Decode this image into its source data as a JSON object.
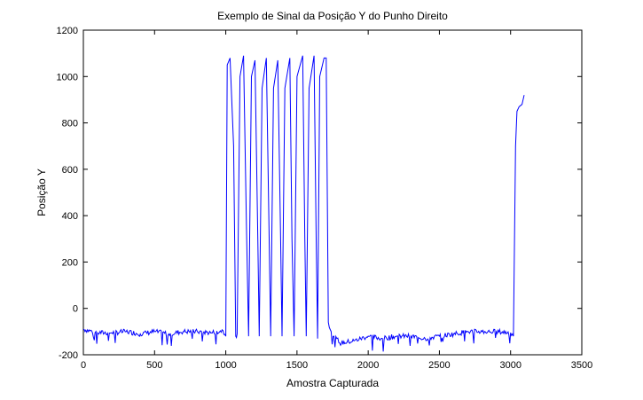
{
  "chart_data": {
    "type": "line",
    "title": "Exemplo de Sinal da Posição Y do Punho Direito",
    "xlabel": "Amostra Capturada",
    "ylabel": "Posição Y",
    "xlim": [
      0,
      3500
    ],
    "ylim": [
      -200,
      1200
    ],
    "xticks": [
      0,
      500,
      1000,
      1500,
      2000,
      2500,
      3000,
      3500
    ],
    "yticks": [
      -200,
      0,
      200,
      400,
      600,
      800,
      1000,
      1200
    ],
    "grid": false,
    "line_color": "#0000ff",
    "series": [
      {
        "x": [
          0,
          100,
          200,
          300,
          400,
          500,
          600,
          700,
          800,
          900,
          980,
          1000,
          1010,
          1030,
          1055,
          1070,
          1080,
          1100,
          1125,
          1145,
          1160,
          1180,
          1205,
          1225,
          1235,
          1255,
          1285,
          1305,
          1315,
          1335,
          1365,
          1385,
          1395,
          1415,
          1450,
          1465,
          1480,
          1500,
          1540,
          1555,
          1565,
          1585,
          1620,
          1635,
          1645,
          1660,
          1690,
          1705,
          1720,
          1740,
          1760,
          1780,
          1800,
          1900,
          2000,
          2100,
          2200,
          2300,
          2400,
          2500,
          2600,
          2700,
          2800,
          2900,
          3000,
          3020,
          3035,
          3045,
          3060,
          3080,
          3095
        ],
        "y": [
          -90,
          -105,
          -105,
          -100,
          -110,
          -100,
          -110,
          -100,
          -100,
          -105,
          -95,
          -120,
          1050,
          1080,
          700,
          -120,
          -110,
          1000,
          1090,
          350,
          -120,
          1000,
          1070,
          300,
          -120,
          950,
          1080,
          300,
          -120,
          950,
          1070,
          300,
          -120,
          950,
          1080,
          300,
          -120,
          1000,
          1090,
          300,
          -120,
          950,
          1090,
          300,
          -130,
          1000,
          1080,
          1080,
          -60,
          -100,
          -120,
          -130,
          -150,
          -140,
          -120,
          -130,
          -120,
          -120,
          -130,
          -120,
          -110,
          -100,
          -100,
          -100,
          -105,
          -120,
          700,
          850,
          870,
          880,
          920
        ]
      }
    ]
  }
}
